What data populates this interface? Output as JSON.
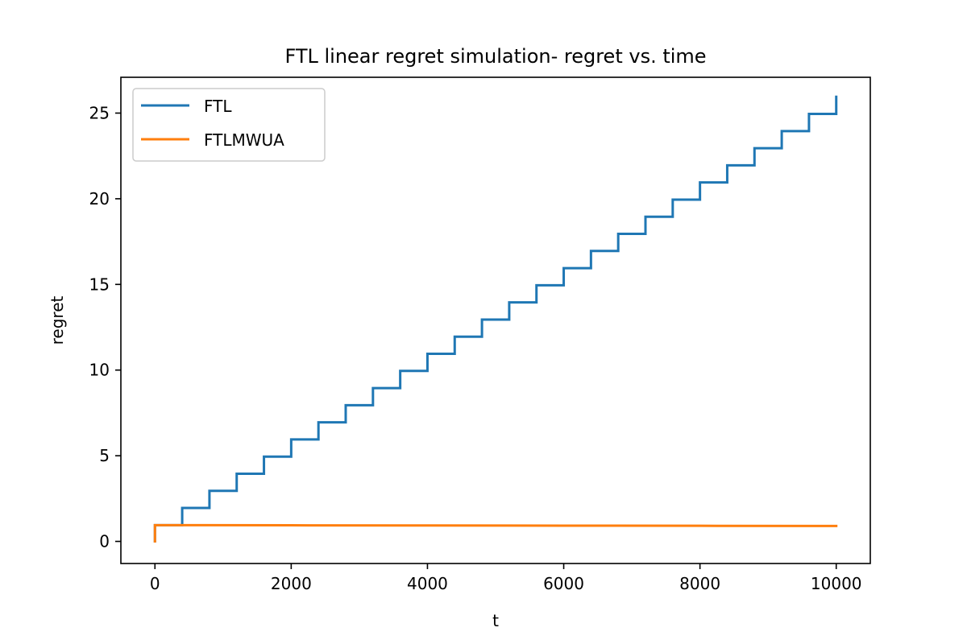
{
  "chart_data": {
    "type": "line",
    "title": "FTL linear regret simulation- regret vs. time",
    "xlabel": "t",
    "ylabel": "regret",
    "xlim": [
      -500,
      10500
    ],
    "ylim": [
      -1.29,
      27.09
    ],
    "xticks": [
      0,
      2000,
      4000,
      6000,
      8000,
      10000
    ],
    "xtick_labels": [
      "0",
      "2000",
      "4000",
      "6000",
      "8000",
      "10000"
    ],
    "yticks": [
      0,
      5,
      10,
      15,
      20,
      25
    ],
    "ytick_labels": [
      "0",
      "5",
      "10",
      "15",
      "20",
      "25"
    ],
    "grid": false,
    "legend_position": "top-left",
    "series": [
      {
        "name": "FTL",
        "color": "#1f77b4",
        "style": "step",
        "x": [
          0,
          400,
          800,
          1200,
          1600,
          2000,
          2400,
          2800,
          3200,
          3600,
          4000,
          4400,
          4800,
          5200,
          5600,
          6000,
          6400,
          6800,
          7200,
          7600,
          8000,
          8400,
          8800,
          9200,
          9600,
          10000
        ],
        "y": [
          0.95,
          1.95,
          2.95,
          3.95,
          4.95,
          5.95,
          6.95,
          7.95,
          8.95,
          9.95,
          10.95,
          11.95,
          12.95,
          13.95,
          14.95,
          15.95,
          16.95,
          17.95,
          18.95,
          19.95,
          20.95,
          21.95,
          22.95,
          23.95,
          24.95,
          25.95
        ],
        "start": [
          0,
          0
        ]
      },
      {
        "name": "FTLMWUA",
        "color": "#ff7f0e",
        "style": "line",
        "x": [
          0,
          0,
          2000,
          4000,
          6000,
          8000,
          10000
        ],
        "y": [
          0,
          0.95,
          0.94,
          0.93,
          0.92,
          0.91,
          0.9
        ]
      }
    ]
  }
}
